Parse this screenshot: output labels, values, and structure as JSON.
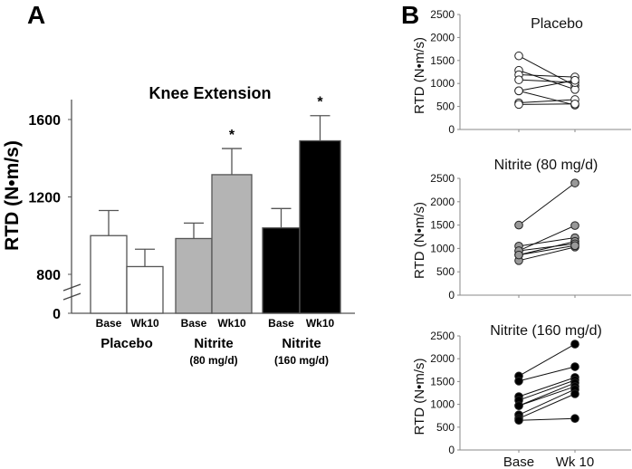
{
  "chart_data": [
    {
      "panel_label": "A",
      "type": "bar",
      "title": "Knee Extension",
      "ylabel": "RTD (N•m/s)",
      "xlabel": "",
      "ylim": [
        0,
        1700
      ],
      "axis_break": true,
      "yticks": [
        0,
        800,
        1200,
        1600
      ],
      "ytick_labels": [
        "0",
        "800",
        "1200",
        "1600"
      ],
      "grid": false,
      "groups": [
        {
          "name": "Placebo",
          "subname": "",
          "color": "#ffffff",
          "bars": [
            {
              "label": "Base",
              "value": 1000,
              "error": 130,
              "significant": false
            },
            {
              "label": "Wk10",
              "value": 840,
              "error": 90,
              "significant": false
            }
          ]
        },
        {
          "name": "Nitrite",
          "subname": "(80 mg/d)",
          "color": "#b4b4b4",
          "bars": [
            {
              "label": "Base",
              "value": 985,
              "error": 80,
              "significant": false
            },
            {
              "label": "Wk10",
              "value": 1315,
              "error": 135,
              "significant": true
            }
          ]
        },
        {
          "name": "Nitrite",
          "subname": "(160 mg/d)",
          "color": "#000000",
          "bars": [
            {
              "label": "Base",
              "value": 1040,
              "error": 100,
              "significant": false
            },
            {
              "label": "Wk10",
              "value": 1490,
              "error": 130,
              "significant": true
            }
          ]
        }
      ],
      "significance_marker": "*"
    },
    {
      "panel_label": "B",
      "type": "line",
      "subplots": [
        {
          "title": "Placebo",
          "ylabel": "RTD (N•m/s)",
          "ylim": [
            0,
            2500
          ],
          "yticks": [
            0,
            500,
            1000,
            1500,
            2000,
            2500
          ],
          "categories": [
            "Base",
            "Wk 10"
          ],
          "show_xticklabels": false,
          "marker_fill": "#ffffff",
          "subjects": [
            [
              1600,
              950
            ],
            [
              1285,
              870
            ],
            [
              1190,
              1140
            ],
            [
              1080,
              1020
            ],
            [
              840,
              1070
            ],
            [
              840,
              530
            ],
            [
              580,
              650
            ],
            [
              545,
              555
            ]
          ]
        },
        {
          "title": "Nitrite (80 mg/d)",
          "ylabel": "RTD (N•m/s)",
          "ylim": [
            0,
            2500
          ],
          "yticks": [
            0,
            500,
            1000,
            1500,
            2000,
            2500
          ],
          "categories": [
            "Base",
            "Wk 10"
          ],
          "show_xticklabels": false,
          "marker_fill": "#999999",
          "subjects": [
            [
              1500,
              2400
            ],
            [
              950,
              1490
            ],
            [
              1050,
              1230
            ],
            [
              860,
              1150
            ],
            [
              950,
              1100
            ],
            [
              740,
              1030
            ],
            [
              860,
              1060
            ]
          ]
        },
        {
          "title": "Nitrite (160 mg/d)",
          "ylabel": "RTD (N•m/s)",
          "ylim": [
            0,
            2500
          ],
          "yticks": [
            0,
            500,
            1000,
            1500,
            2000,
            2500
          ],
          "categories": [
            "Base",
            "Wk 10"
          ],
          "show_xticklabels": true,
          "marker_fill": "#000000",
          "subjects": [
            [
              1620,
              2320
            ],
            [
              1510,
              1825
            ],
            [
              1170,
              1590
            ],
            [
              1090,
              1530
            ],
            [
              970,
              1470
            ],
            [
              970,
              1390
            ],
            [
              770,
              1330
            ],
            [
              690,
              1230
            ],
            [
              650,
              690
            ]
          ]
        }
      ]
    }
  ]
}
